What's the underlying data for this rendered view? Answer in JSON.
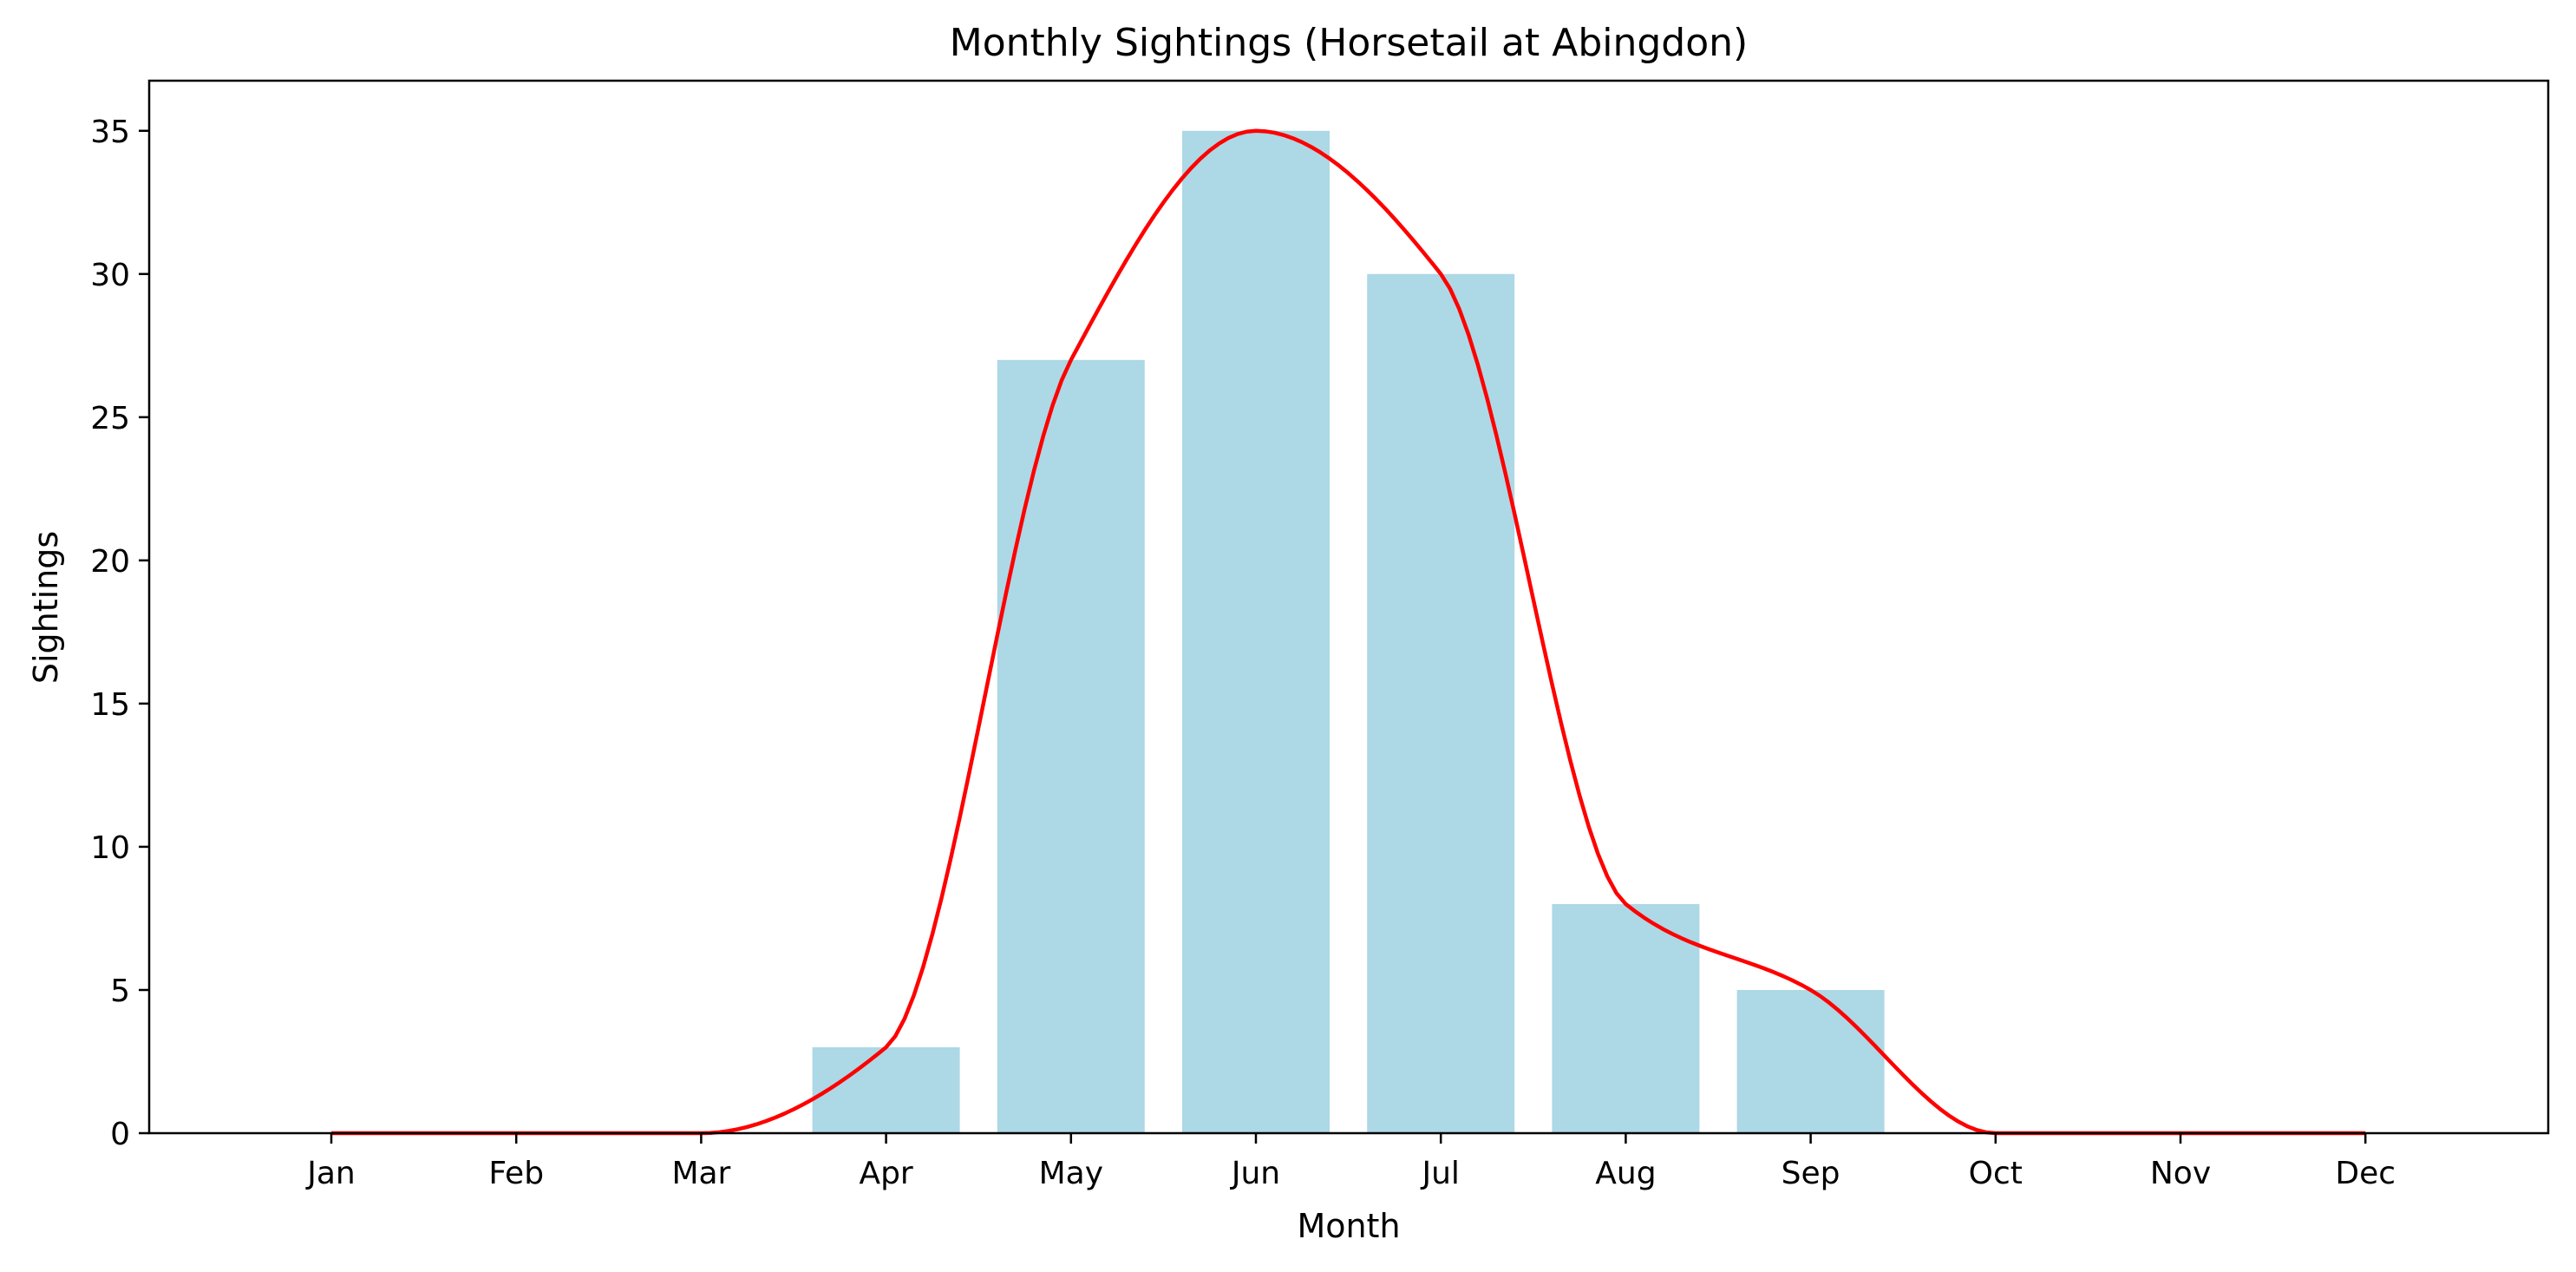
{
  "chart_data": {
    "type": "bar",
    "title": "Monthly Sightings (Horsetail at Abingdon)",
    "xlabel": "Month",
    "ylabel": "Sightings",
    "categories": [
      "Jan",
      "Feb",
      "Mar",
      "Apr",
      "May",
      "Jun",
      "Jul",
      "Aug",
      "Sep",
      "Oct",
      "Nov",
      "Dec"
    ],
    "values": [
      0,
      0,
      0,
      3,
      27,
      35,
      30,
      8,
      5,
      0,
      0,
      0
    ],
    "ylim": [
      0,
      36.75
    ],
    "yticks": [
      0,
      5,
      10,
      15,
      20,
      25,
      30,
      35
    ],
    "grid": false,
    "legend": "none",
    "series": [
      {
        "kind": "bar",
        "color": "#add8e6",
        "values": [
          0,
          0,
          0,
          3,
          27,
          35,
          30,
          8,
          5,
          0,
          0,
          0
        ]
      },
      {
        "kind": "smoothed-line",
        "color": "#ff0000",
        "values": [
          0,
          0,
          0,
          3,
          27,
          35,
          30,
          8,
          5,
          0,
          0,
          0
        ]
      }
    ]
  }
}
